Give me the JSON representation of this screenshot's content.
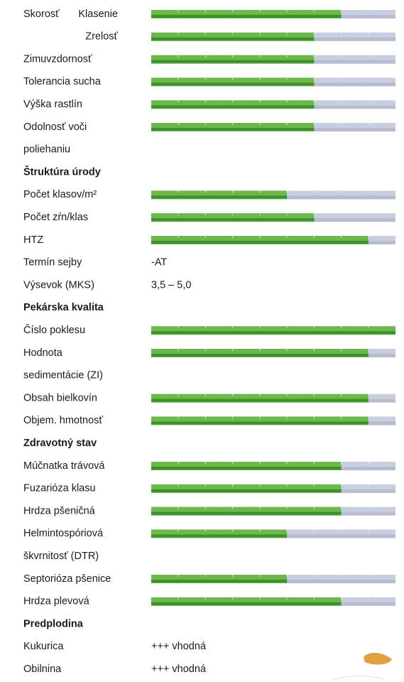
{
  "max_score": 9,
  "rows": [
    {
      "group": "Skorosť",
      "items": [
        {
          "lines": [
            "Klasenie"
          ],
          "score": 7
        },
        {
          "lines": [
            "Zrelosť"
          ],
          "score": 6
        }
      ]
    },
    {
      "lines": [
        "Zimuvzdornosť"
      ],
      "score": 6
    },
    {
      "lines": [
        "Tolerancia sucha"
      ],
      "score": 6
    },
    {
      "lines": [
        "Výška rastlín"
      ],
      "score": 6
    },
    {
      "lines": [
        "Odolnosť voči",
        "poliehaniu"
      ],
      "score": 6
    },
    {
      "heading": "Štruktúra úrody"
    },
    {
      "lines": [
        "Počet klasov/m²"
      ],
      "score": 5
    },
    {
      "lines": [
        "Počet zŕn/klas"
      ],
      "score": 6
    },
    {
      "lines": [
        "HTZ"
      ],
      "score": 8
    },
    {
      "lines": [
        "Termín sejby"
      ],
      "text": "-AT"
    },
    {
      "lines": [
        "Výsevok (MKS)"
      ],
      "text": "3,5 – 5,0"
    },
    {
      "heading": "Pekárska kvalita"
    },
    {
      "lines": [
        "Číslo poklesu"
      ],
      "score": 9
    },
    {
      "lines": [
        "Hodnota",
        "sedimentácie (ZI)"
      ],
      "score": 8
    },
    {
      "lines": [
        "Obsah bielkovín"
      ],
      "score": 8
    },
    {
      "lines": [
        "Objem. hmotnosť"
      ],
      "score": 8
    },
    {
      "heading": "Zdravotný stav"
    },
    {
      "lines": [
        "Múčnatka trávová"
      ],
      "score": 7
    },
    {
      "lines": [
        "Fuzarióza klasu"
      ],
      "score": 7
    },
    {
      "lines": [
        "Hrdza pšeničná"
      ],
      "score": 7
    },
    {
      "lines": [
        "Helmintospóriová",
        "škvrnitosť (DTR)"
      ],
      "score": 5
    },
    {
      "lines": [
        "Septorióza pšenice"
      ],
      "score": 5
    },
    {
      "lines": [
        "Hrdza plevová"
      ],
      "score": 7
    },
    {
      "heading": "Predplodina"
    },
    {
      "lines": [
        "Kukurica"
      ],
      "text": "+++ vhodná"
    },
    {
      "lines": [
        "Obilnina"
      ],
      "text": "+++ vhodná"
    }
  ]
}
